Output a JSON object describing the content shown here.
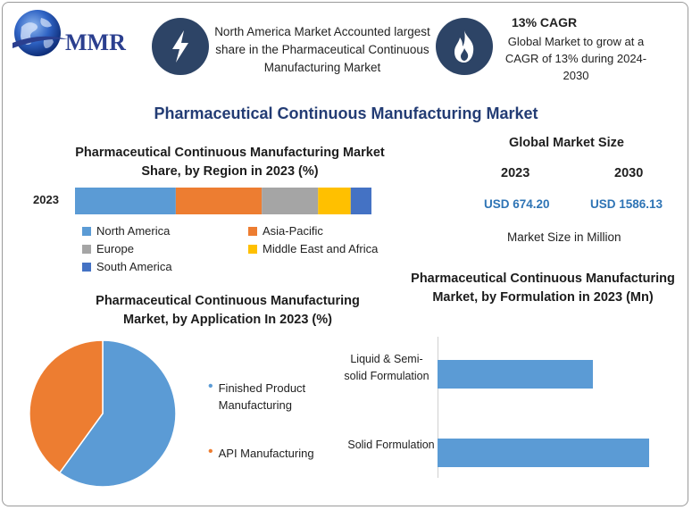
{
  "header": {
    "logo_text": "MMR",
    "box1_text": "North America Market Accounted largest share in the Pharmaceutical Continuous Manufacturing Market",
    "box2_title": "13% CAGR",
    "box2_text": "Global Market to grow at a CAGR of 13% during 2024-2030"
  },
  "main_title": "Pharmaceutical Continuous Manufacturing Market",
  "global_market": {
    "title": "Global Market Size",
    "year1": "2023",
    "year2": "2030",
    "value1": "USD 674.20",
    "value2": "USD 1586.13",
    "unit_label": "Market Size in Million"
  },
  "colors": {
    "north_america": "#5b9bd5",
    "asia_pacific": "#ed7d31",
    "europe": "#a5a5a5",
    "middle_east_africa": "#ffc000",
    "south_america": "#4472c4",
    "bar": "#5b9bd5",
    "pie_finished": "#5b9bd5",
    "pie_api": "#ed7d31"
  },
  "chart_data": [
    {
      "type": "bar",
      "orientation": "horizontal-stacked",
      "title": "Pharmaceutical Continuous Manufacturing Market Share, by Region in 2023 (%)",
      "categories": [
        "2023"
      ],
      "series": [
        {
          "name": "North America",
          "values": [
            34
          ]
        },
        {
          "name": "Asia-Pacific",
          "values": [
            29
          ]
        },
        {
          "name": "Europe",
          "values": [
            19
          ]
        },
        {
          "name": "Middle East and Africa",
          "values": [
            11
          ]
        },
        {
          "name": "South America",
          "values": [
            7
          ]
        }
      ],
      "legend_position": "bottom"
    },
    {
      "type": "pie",
      "title": "Pharmaceutical Continuous Manufacturing Market, by Application In 2023 (%)",
      "labels": [
        "Finished Product Manufacturing",
        "API Manufacturing"
      ],
      "values": [
        60,
        40
      ],
      "legend_position": "right"
    },
    {
      "type": "bar",
      "orientation": "horizontal",
      "title": "Pharmaceutical Continuous Manufacturing Market, by Formulation in 2023 (Mn)",
      "categories": [
        "Liquid & Semi-solid Formulation",
        "Solid Formulation"
      ],
      "values": [
        290,
        395
      ],
      "xlim": [
        0,
        400
      ]
    }
  ]
}
